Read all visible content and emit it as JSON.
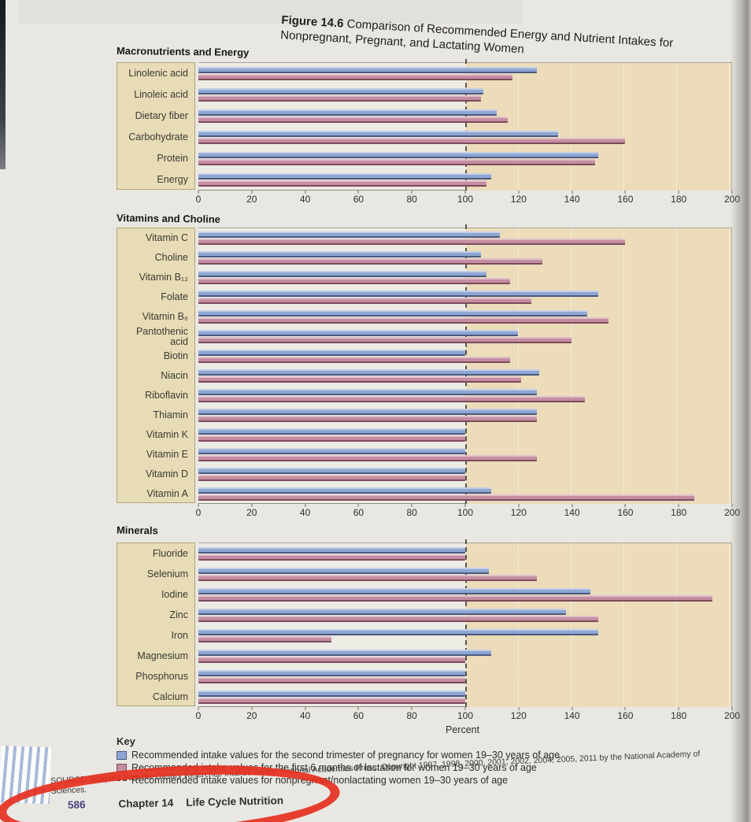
{
  "figure": {
    "label": "Figure 14.6",
    "title": "Comparison of Recommended Energy and Nutrient Intakes for Nonpregnant, Pregnant, and Lactating Women"
  },
  "axis": {
    "min": 0,
    "max": 200,
    "step": 20,
    "ticks": [
      0,
      20,
      40,
      60,
      80,
      100,
      120,
      140,
      160,
      180,
      200
    ],
    "percent_label": "Percent",
    "reference_value": 100
  },
  "chart_data": [
    {
      "type": "bar",
      "orientation": "horizontal",
      "section": "Macronutrients and Energy",
      "xlim": [
        0,
        200
      ],
      "reference_line": 100,
      "categories": [
        "Linolenic acid",
        "Linoleic acid",
        "Dietary fiber",
        "Carbohydrate",
        "Protein",
        "Energy"
      ],
      "series": [
        {
          "name": "Pregnancy (second trimester)",
          "color": "#8ea6d2",
          "values": [
            127,
            107,
            112,
            135,
            150,
            110
          ]
        },
        {
          "name": "Lactation (first 6 months)",
          "color": "#c48da0",
          "values": [
            118,
            106,
            116,
            160,
            149,
            108
          ]
        }
      ]
    },
    {
      "type": "bar",
      "orientation": "horizontal",
      "section": "Vitamins and Choline",
      "xlim": [
        0,
        200
      ],
      "reference_line": 100,
      "categories": [
        "Vitamin C",
        "Choline",
        "Vitamin B₁₂",
        "Folate",
        "Vitamin B₆",
        "Pantothenic acid",
        "Biotin",
        "Niacin",
        "Riboflavin",
        "Thiamin",
        "Vitamin K",
        "Vitamin E",
        "Vitamin D",
        "Vitamin A"
      ],
      "series": [
        {
          "name": "Pregnancy (second trimester)",
          "color": "#8ea6d2",
          "values": [
            113,
            106,
            108,
            150,
            146,
            120,
            100,
            128,
            127,
            127,
            100,
            100,
            100,
            110
          ]
        },
        {
          "name": "Lactation (first 6 months)",
          "color": "#c48da0",
          "values": [
            160,
            129,
            117,
            125,
            154,
            140,
            117,
            121,
            145,
            127,
            100,
            127,
            100,
            186
          ]
        }
      ]
    },
    {
      "type": "bar",
      "orientation": "horizontal",
      "section": "Minerals",
      "xlim": [
        0,
        200
      ],
      "reference_line": 100,
      "categories": [
        "Fluoride",
        "Selenium",
        "Iodine",
        "Zinc",
        "Iron",
        "Magnesium",
        "Phosphorus",
        "Calcium"
      ],
      "series": [
        {
          "name": "Pregnancy (second trimester)",
          "color": "#8ea6d2",
          "values": [
            100,
            109,
            147,
            138,
            150,
            110,
            100,
            100
          ]
        },
        {
          "name": "Lactation (first 6 months)",
          "color": "#c48da0",
          "values": [
            100,
            127,
            193,
            150,
            50,
            100,
            100,
            100
          ]
        }
      ]
    }
  ],
  "key": {
    "title": "Key",
    "items": [
      {
        "swatch": "blue",
        "text": "Recommended intake values for the second trimester of pregnancy for women 19–30 years of age"
      },
      {
        "swatch": "pink",
        "text": "Recommended intake values for the first 6 months of lactation for women 19–30 years of age"
      },
      {
        "swatch": "dash",
        "text": "Recommended intake values for nonpregnant/nonlactating women 19–30 years of age"
      }
    ]
  },
  "source": "SOURCE: Adapted from the Dietary Reference Intakes series, National Academies Press. Copyright 1997, 1998, 2000, 2001, 2002, 2004, 2005, 2011 by the National Academy of Sciences.",
  "footer": {
    "page_number": "586",
    "chapter": "Chapter 14",
    "chapter_title": "Life Cycle Nutrition"
  },
  "colors": {
    "pregnancy_blue": "#8ea6d2",
    "lactation_pink": "#c48da0",
    "tan_shading": "#ecdcba",
    "label_panel": "#e8dcb6",
    "page_background": "#e9e7e2",
    "red_annotation": "#e5301f",
    "page_number_blue": "#4a4080"
  }
}
